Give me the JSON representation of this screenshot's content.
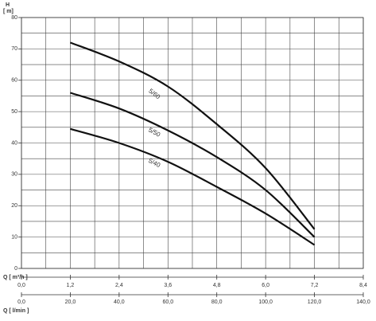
{
  "chart_data": {
    "type": "line",
    "y_label": "H",
    "y_unit": "[ m]",
    "x_label": "Q [ m³/h ]",
    "x2_label": "Q [ l/min ]",
    "x": [
      1.2,
      2.4,
      3.6,
      4.8,
      6.0,
      7.2
    ],
    "series": [
      {
        "name": "5/60",
        "color": "#111111",
        "values": [
          72,
          66,
          58,
          46,
          32,
          12.5
        ]
      },
      {
        "name": "5/50",
        "color": "#111111",
        "values": [
          56,
          51,
          44,
          35.5,
          25,
          10
        ]
      },
      {
        "name": "5/40",
        "color": "#111111",
        "values": [
          44.5,
          40,
          34,
          26,
          17.5,
          7.5
        ]
      }
    ],
    "xlim": [
      0,
      8.4
    ],
    "xticks": [
      {
        "value": 0,
        "label": "0,0"
      },
      {
        "value": 1.2,
        "label": "1,2"
      },
      {
        "value": 2.4,
        "label": "2,4"
      },
      {
        "value": 3.6,
        "label": "3,6"
      },
      {
        "value": 4.8,
        "label": "4,8"
      },
      {
        "value": 6.0,
        "label": "6,0"
      },
      {
        "value": 7.2,
        "label": "7,2"
      },
      {
        "value": 8.4,
        "label": "8,4"
      }
    ],
    "x2lim": [
      0,
      140
    ],
    "x2ticks": [
      {
        "value": 0,
        "label": "0,0"
      },
      {
        "value": 20,
        "label": "20,0"
      },
      {
        "value": 40,
        "label": "40,0"
      },
      {
        "value": 60,
        "label": "60,0"
      },
      {
        "value": 80,
        "label": "80,0"
      },
      {
        "value": 100,
        "label": "100,0"
      },
      {
        "value": 120,
        "label": "120,0"
      },
      {
        "value": 140,
        "label": "140,0"
      }
    ],
    "ylim": [
      0,
      80
    ],
    "yticks": [
      0,
      10,
      20,
      30,
      40,
      50,
      60,
      70,
      80
    ],
    "grid": true
  }
}
